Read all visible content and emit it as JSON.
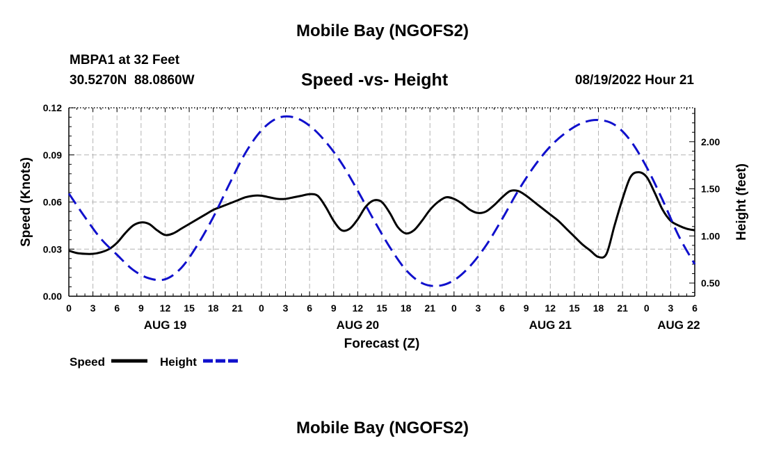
{
  "header": {
    "title_top": "Mobile Bay (NGOFS2)",
    "station": "MBPA1 at 32 Feet",
    "coords": "30.5270N  88.0860W",
    "subtitle": "Speed -vs- Height",
    "timestamp": "08/19/2022 Hour 21",
    "title_bottom": "Mobile Bay (NGOFS2)"
  },
  "legend": {
    "speed_label": "Speed",
    "height_label": "Height"
  },
  "colors": {
    "speed": "#000000",
    "height": "#1010cc",
    "grid": "#b4b4b4"
  },
  "chart_data": {
    "type": "line",
    "xlabel": "Forecast (Z)",
    "ylabel_left": "Speed (Knots)",
    "ylabel_right": "Height (feet)",
    "x_unit": "hours since 2022-08-19 00Z",
    "xlim": [
      0,
      78
    ],
    "ylim_left": [
      0,
      0.12
    ],
    "ylim_right": [
      0.36,
      2.36
    ],
    "grid": true,
    "left_ticks": [
      {
        "value": 0,
        "label": "0.00"
      },
      {
        "value": 0.03,
        "label": "0.03"
      },
      {
        "value": 0.06,
        "label": "0.06"
      },
      {
        "value": 0.09,
        "label": "0.09"
      },
      {
        "value": 0.12,
        "label": "0.12"
      }
    ],
    "right_ticks": [
      {
        "value": 0.5,
        "label": "0.50"
      },
      {
        "value": 1.0,
        "label": "1.00"
      },
      {
        "value": 1.5,
        "label": "1.50"
      },
      {
        "value": 2.0,
        "label": "2.00"
      }
    ],
    "x_ticks": [
      {
        "value": 0,
        "label": "0"
      },
      {
        "value": 3,
        "label": "3"
      },
      {
        "value": 6,
        "label": "6"
      },
      {
        "value": 9,
        "label": "9"
      },
      {
        "value": 12,
        "label": "12"
      },
      {
        "value": 15,
        "label": "15"
      },
      {
        "value": 18,
        "label": "18"
      },
      {
        "value": 21,
        "label": "21"
      },
      {
        "value": 24,
        "label": "0"
      },
      {
        "value": 27,
        "label": "3"
      },
      {
        "value": 30,
        "label": "6"
      },
      {
        "value": 33,
        "label": "9"
      },
      {
        "value": 36,
        "label": "12"
      },
      {
        "value": 39,
        "label": "15"
      },
      {
        "value": 42,
        "label": "18"
      },
      {
        "value": 45,
        "label": "21"
      },
      {
        "value": 48,
        "label": "0"
      },
      {
        "value": 51,
        "label": "3"
      },
      {
        "value": 54,
        "label": "6"
      },
      {
        "value": 57,
        "label": "9"
      },
      {
        "value": 60,
        "label": "12"
      },
      {
        "value": 63,
        "label": "15"
      },
      {
        "value": 66,
        "label": "18"
      },
      {
        "value": 69,
        "label": "21"
      },
      {
        "value": 72,
        "label": "0"
      },
      {
        "value": 75,
        "label": "3"
      },
      {
        "value": 78,
        "label": "6"
      }
    ],
    "date_labels": [
      {
        "value": 12,
        "label": "AUG 19"
      },
      {
        "value": 36,
        "label": "AUG 20"
      },
      {
        "value": 60,
        "label": "AUG 21"
      },
      {
        "value": 76,
        "label": "AUG 22"
      }
    ],
    "series": [
      {
        "name": "Speed",
        "axis": "left",
        "style": "solid",
        "x": [
          0,
          1,
          2,
          3,
          4,
          5,
          6,
          7,
          8,
          9,
          10,
          11,
          12,
          13,
          14,
          15,
          16,
          17,
          18,
          19,
          20,
          21,
          22,
          23,
          24,
          25,
          26,
          27,
          28,
          29,
          30,
          31,
          32,
          33,
          34,
          35,
          36,
          37,
          38,
          39,
          40,
          41,
          42,
          43,
          44,
          45,
          46,
          47,
          48,
          49,
          50,
          51,
          52,
          53,
          54,
          55,
          56,
          57,
          58,
          59,
          60,
          61,
          62,
          63,
          64,
          65,
          66,
          67,
          68,
          69,
          70,
          71,
          72,
          73,
          74,
          75,
          76,
          77,
          78
        ],
        "values": [
          0.029,
          0.0275,
          0.027,
          0.027,
          0.028,
          0.03,
          0.034,
          0.04,
          0.045,
          0.047,
          0.046,
          0.042,
          0.039,
          0.04,
          0.043,
          0.046,
          0.049,
          0.052,
          0.055,
          0.057,
          0.059,
          0.061,
          0.063,
          0.064,
          0.064,
          0.063,
          0.062,
          0.062,
          0.063,
          0.064,
          0.065,
          0.064,
          0.057,
          0.048,
          0.042,
          0.043,
          0.049,
          0.057,
          0.061,
          0.06,
          0.053,
          0.044,
          0.04,
          0.042,
          0.048,
          0.055,
          0.06,
          0.063,
          0.062,
          0.059,
          0.055,
          0.053,
          0.054,
          0.058,
          0.063,
          0.067,
          0.067,
          0.064,
          0.06,
          0.056,
          0.052,
          0.048,
          0.043,
          0.038,
          0.033,
          0.029,
          0.025,
          0.027,
          0.045,
          0.062,
          0.076,
          0.079,
          0.076,
          0.066,
          0.055,
          0.048,
          0.045,
          0.043,
          0.042
        ]
      },
      {
        "name": "Height",
        "axis": "right",
        "style": "dashed",
        "x": [
          0,
          2,
          4,
          6,
          8,
          10,
          12,
          14,
          16,
          18,
          20,
          22,
          24,
          26,
          28,
          30,
          32,
          34,
          36,
          38,
          40,
          42,
          44,
          46,
          48,
          50,
          52,
          54,
          56,
          58,
          60,
          62,
          64,
          66,
          68,
          70,
          72,
          74,
          76,
          78
        ],
        "values": [
          1.45,
          1.2,
          0.97,
          0.8,
          0.64,
          0.55,
          0.54,
          0.66,
          0.9,
          1.2,
          1.55,
          1.88,
          2.12,
          2.25,
          2.26,
          2.17,
          2.0,
          1.77,
          1.48,
          1.17,
          0.88,
          0.64,
          0.5,
          0.47,
          0.53,
          0.68,
          0.9,
          1.18,
          1.48,
          1.74,
          1.95,
          2.1,
          2.2,
          2.23,
          2.18,
          2.01,
          1.73,
          1.38,
          1.0,
          0.7
        ]
      }
    ]
  }
}
